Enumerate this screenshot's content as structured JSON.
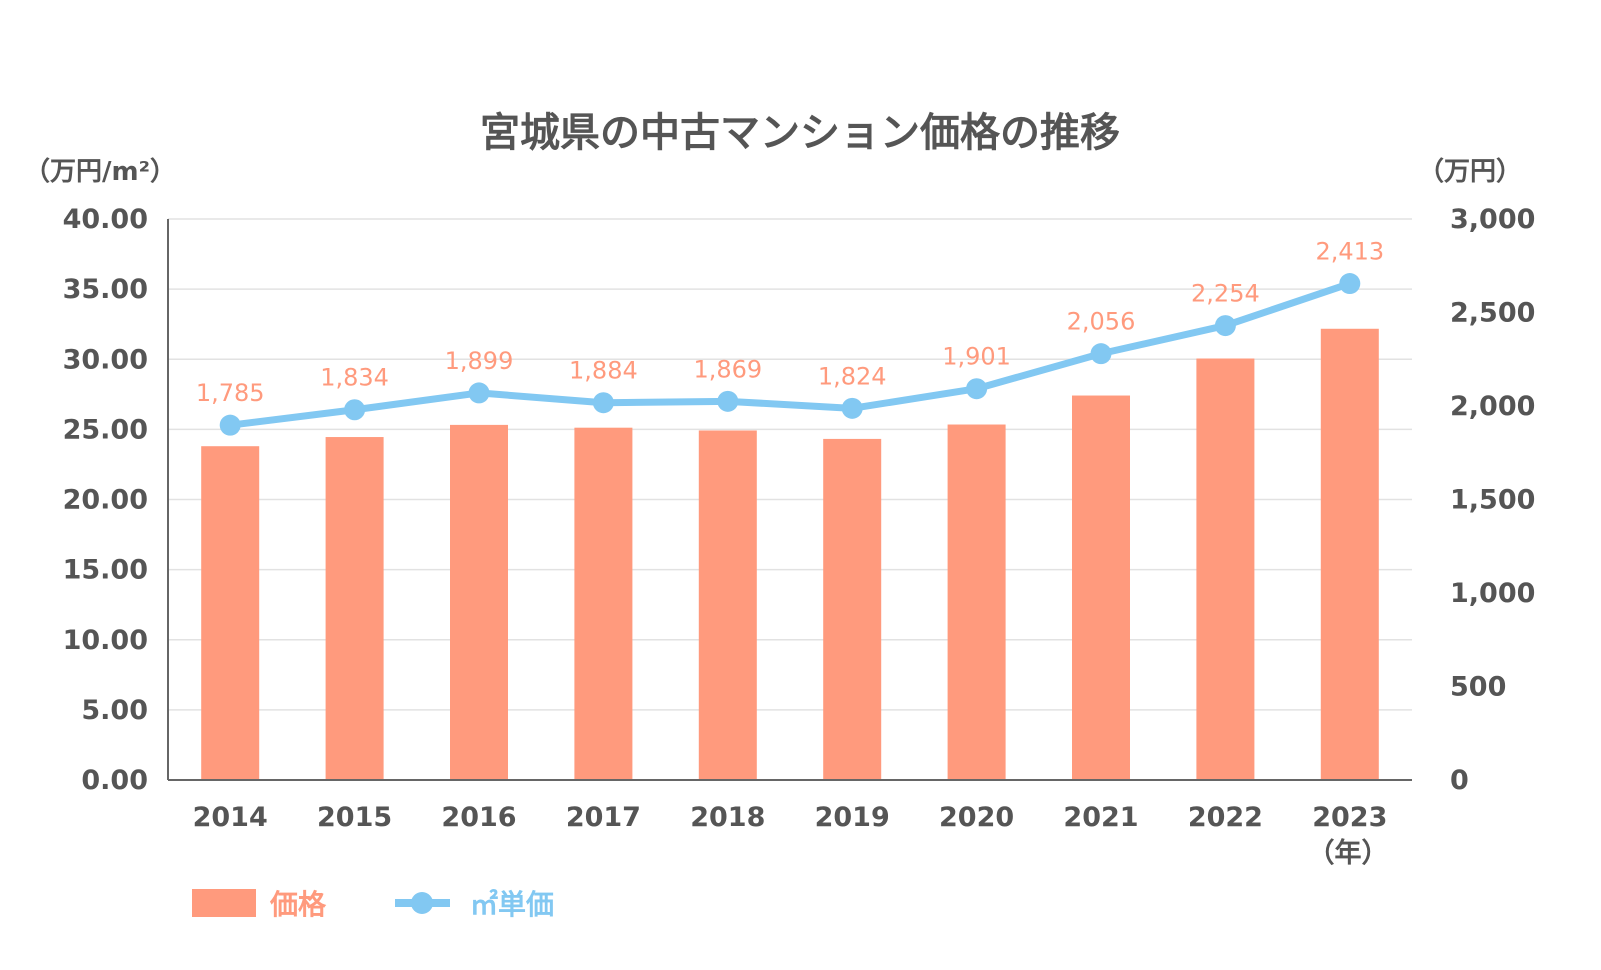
{
  "chart_data": {
    "type": "bar",
    "title": "宮城県の中古マンション価格の推移",
    "categories": [
      "2014",
      "2015",
      "2016",
      "2017",
      "2018",
      "2019",
      "2020",
      "2021",
      "2022",
      "2023"
    ],
    "x_unit_label": "（年）",
    "y_left": {
      "unit_label": "（万円/m²）",
      "ylim": [
        0,
        40
      ],
      "ticks": [
        "40.00",
        "35.00",
        "30.00",
        "25.00",
        "20.00",
        "15.00",
        "10.00",
        "5.00",
        "0.00"
      ]
    },
    "y_right": {
      "unit_label": "（万円）",
      "ylim": [
        0,
        3000
      ],
      "ticks": [
        "3,000",
        "2,500",
        "2,000",
        "1,500",
        "1,000",
        "500",
        "0"
      ]
    },
    "series": [
      {
        "name": "価格",
        "type": "bar",
        "axis": "right",
        "values": [
          1785,
          1834,
          1899,
          1884,
          1869,
          1824,
          1901,
          2056,
          2254,
          2413
        ],
        "labels": [
          "1,785",
          "1,834",
          "1,899",
          "1,884",
          "1,869",
          "1,824",
          "1,901",
          "2,056",
          "2,254",
          "2,413"
        ],
        "color": "#ff9a7d"
      },
      {
        "name": "㎡単価",
        "type": "line",
        "axis": "left",
        "values": [
          25.3,
          26.4,
          27.6,
          26.9,
          27.0,
          26.5,
          27.9,
          30.4,
          32.4,
          35.4
        ],
        "color": "#82c8f2"
      }
    ],
    "grid": true,
    "legend_position": "bottom-left"
  }
}
